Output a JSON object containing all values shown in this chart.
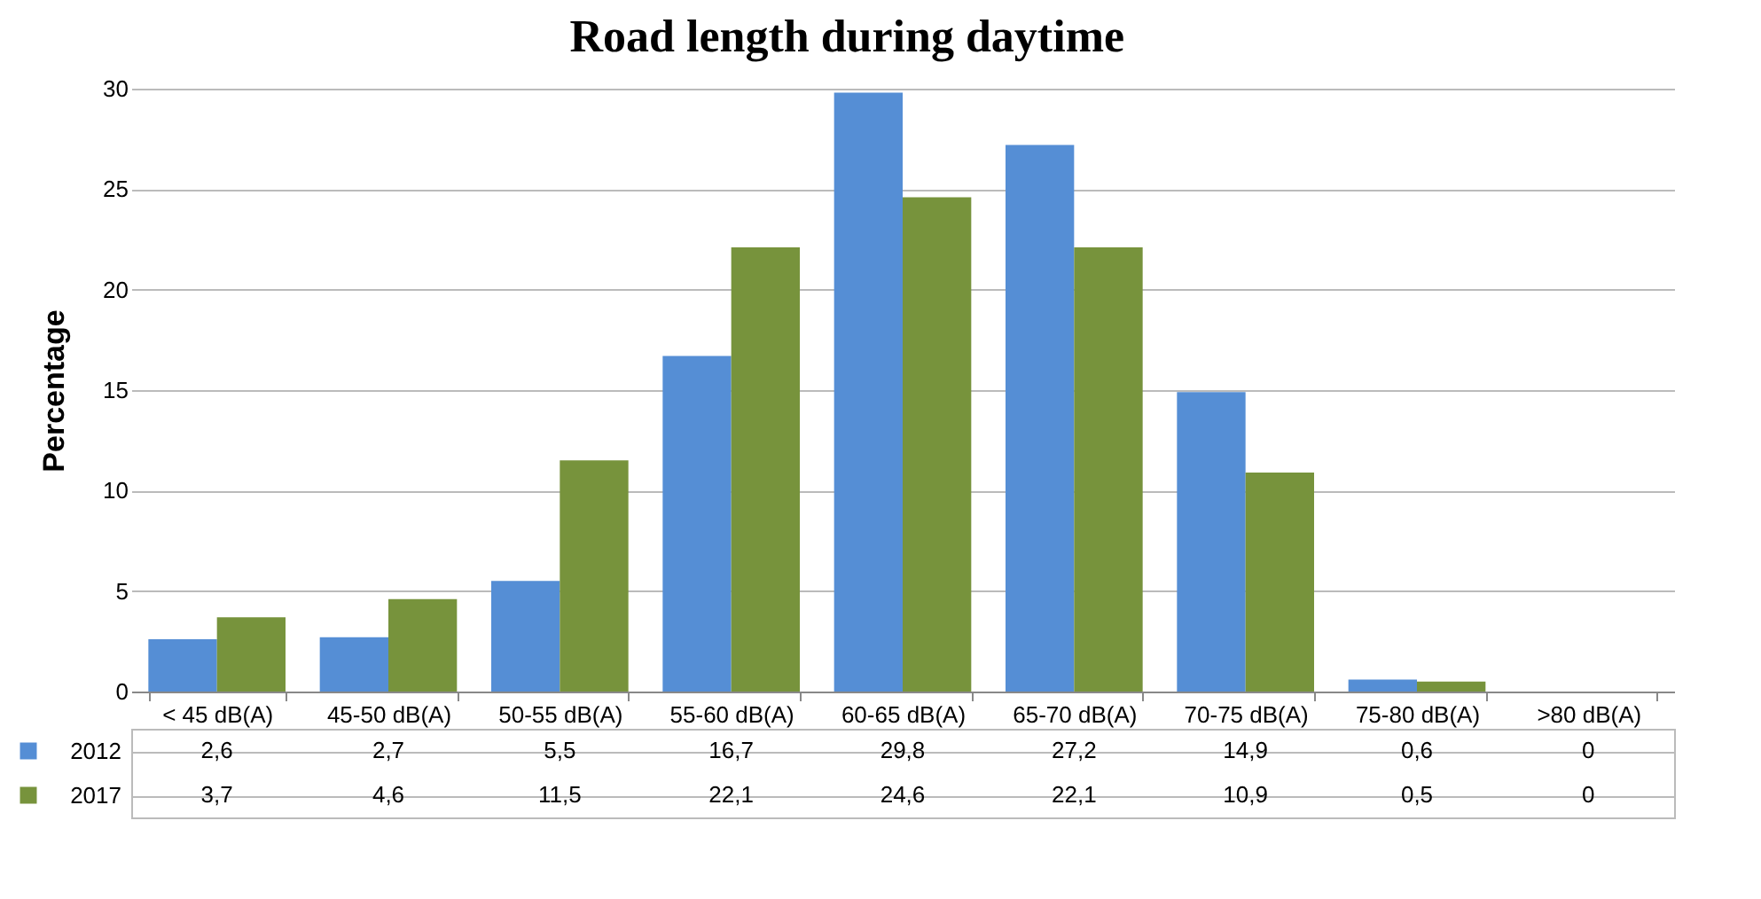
{
  "chart_data": {
    "type": "bar",
    "title": "Road length during daytime",
    "ylabel": "Percentage",
    "categories": [
      "< 45 dB(A)",
      "45-50 dB(A)",
      "50-55 dB(A)",
      "55-60 dB(A)",
      "60-65 dB(A)",
      "65-70 dB(A)",
      "70-75 dB(A)",
      "75-80 dB(A)",
      ">80 dB(A)"
    ],
    "series": [
      {
        "name": "2012",
        "color": "#558ed5",
        "values": [
          2.6,
          2.7,
          5.5,
          16.7,
          29.8,
          27.2,
          14.9,
          0.6,
          0
        ],
        "value_labels": [
          "2,6",
          "2,7",
          "5,5",
          "16,7",
          "29,8",
          "27,2",
          "14,9",
          "0,6",
          "0"
        ]
      },
      {
        "name": "2017",
        "color": "#77933c",
        "values": [
          3.7,
          4.6,
          11.5,
          22.1,
          24.6,
          22.1,
          10.9,
          0.5,
          0
        ],
        "value_labels": [
          "3,7",
          "4,6",
          "11,5",
          "22,1",
          "24,6",
          "22,1",
          "10,9",
          "0,5",
          "0"
        ]
      }
    ],
    "ylim": [
      0,
      30
    ],
    "yticks": [
      0,
      5,
      10,
      15,
      20,
      25,
      30
    ],
    "grid": "y",
    "legend": "bottom left"
  }
}
